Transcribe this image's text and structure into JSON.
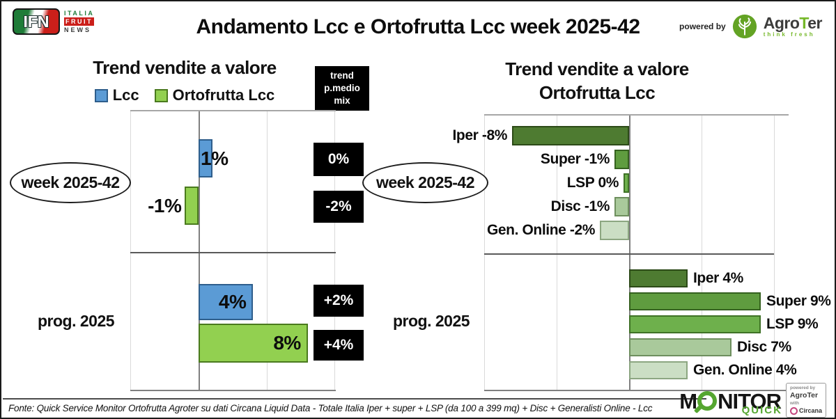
{
  "header": {
    "ifn_logo": {
      "abbr": "IFN",
      "italia": "ITALIA",
      "fruit": "FRUIT",
      "news": "NEWS"
    },
    "title": "Andamento Lcc e Ortofrutta Lcc week 2025-42",
    "powered_by": "powered by",
    "agroter_name_prefix": "Agro",
    "agroter_name_accent": "T",
    "agroter_name_suffix": "er",
    "agroter_tagline": "think fresh"
  },
  "left_panel": {
    "title": "Trend vendite a valore",
    "legend": [
      {
        "label": "Lcc",
        "color": "#5B9BD5"
      },
      {
        "label": "Ortofrutta Lcc",
        "color": "#92D050"
      }
    ],
    "mix_header": "trend\np.medio\nmix"
  },
  "right_panel": {
    "title_line1": "Trend vendite a valore",
    "title_line2": "Ortofrutta Lcc"
  },
  "footer": {
    "source": "Fonte: Quick Service Monitor Ortofrutta Agroter su dati Circana Liquid Data - Totale Italia Iper + super + LSP (da 100 a 399 mq) + Disc + Generalisti Online - Lcc"
  },
  "monitor_logo": {
    "word_prefix": "M",
    "word_suffix": "NITOR",
    "sub": "QUICK",
    "powered_by": "powered by",
    "agroter": "AgroTer",
    "with": "with",
    "circana": "Circana"
  },
  "chart_data": [
    {
      "type": "bar",
      "orientation": "horizontal",
      "unit": "%",
      "title": "Trend vendite a valore",
      "legend": [
        "Lcc",
        "Ortofrutta Lcc"
      ],
      "series_colors": {
        "Lcc": "#5B9BD5",
        "Ortofrutta Lcc": "#92D050"
      },
      "extra_column_header": "trend p.medio mix",
      "xlim": [
        -5,
        10
      ],
      "gridline_step_pct": 5,
      "grid": true,
      "groups": [
        {
          "label": "week 2025-42",
          "bars": [
            {
              "series": "Lcc",
              "value": 1,
              "display": "1%",
              "trend_pmedio_mix": "0%"
            },
            {
              "series": "Ortofrutta Lcc",
              "value": -1,
              "display": "-1%",
              "trend_pmedio_mix": "-2%"
            }
          ]
        },
        {
          "label": "prog. 2025",
          "bars": [
            {
              "series": "Lcc",
              "value": 4,
              "display": "4%",
              "trend_pmedio_mix": "+2%"
            },
            {
              "series": "Ortofrutta Lcc",
              "value": 8,
              "display": "8%",
              "trend_pmedio_mix": "+4%"
            }
          ]
        }
      ]
    },
    {
      "type": "bar",
      "orientation": "horizontal",
      "unit": "%",
      "title": "Trend vendite a valore Ortofrutta Lcc",
      "categories": [
        "Iper",
        "Super",
        "LSP",
        "Disc",
        "Gen. Online"
      ],
      "category_colors": [
        "#4E7B31",
        "#5F9C3F",
        "#6EB04C",
        "#A9C99B",
        "#CBDEC4"
      ],
      "xlim": [
        -10,
        11
      ],
      "gridline_step_pct": 5,
      "grid": true,
      "groups": [
        {
          "label": "week 2025-42",
          "bars": [
            {
              "category": "Iper",
              "value": -8,
              "display": "Iper -8%"
            },
            {
              "category": "Super",
              "value": -1,
              "display": "Super -1%"
            },
            {
              "category": "LSP",
              "value": 0,
              "display": "LSP 0%"
            },
            {
              "category": "Disc",
              "value": -1,
              "display": "Disc -1%"
            },
            {
              "category": "Gen. Online",
              "value": -2,
              "display": "Gen. Online -2%"
            }
          ]
        },
        {
          "label": "prog. 2025",
          "bars": [
            {
              "category": "Iper",
              "value": 4,
              "display": "Iper 4%"
            },
            {
              "category": "Super",
              "value": 9,
              "display": "Super 9%"
            },
            {
              "category": "LSP",
              "value": 9,
              "display": "LSP 9%"
            },
            {
              "category": "Disc",
              "value": 7,
              "display": "Disc 7%"
            },
            {
              "category": "Gen. Online",
              "value": 4,
              "display": "Gen. Online 4%"
            }
          ]
        }
      ]
    }
  ]
}
